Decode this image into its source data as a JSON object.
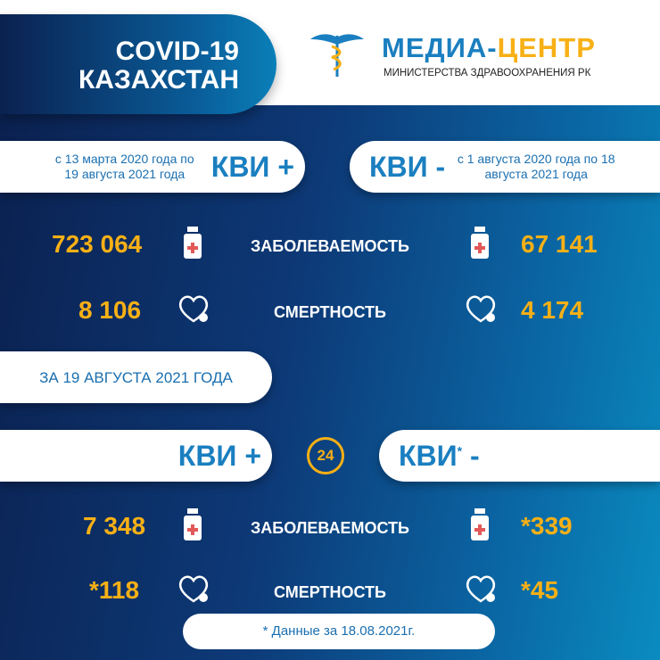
{
  "header": {
    "title_line1": "COVID-19",
    "title_line2": "КАЗАХСТАН",
    "brand_part1": "МЕДИА-",
    "brand_part2": "ЦЕНТР",
    "brand_sub": "МИНИСТЕРСТВА ЗДРАВООХРАНЕНИЯ РК"
  },
  "total": {
    "plus": {
      "label": "КВИ +",
      "dates": "с 13 марта 2020 года по 19 августа 2021 года",
      "cases": "723 064",
      "deaths": "8 106"
    },
    "minus": {
      "label": "КВИ -",
      "dates": "с 1 августа 2020 года по 18 августа 2021 года",
      "cases": "67 141",
      "deaths": "4 174"
    }
  },
  "labels": {
    "cases": "ЗАБОЛЕВАЕМОСТЬ",
    "deaths": "СМЕРТНОСТЬ"
  },
  "daily": {
    "date_label": "ЗА 19 АВГУСТА 2021 ГОДА",
    "badge": "24",
    "plus": {
      "label": "КВИ +",
      "cases": "7 348",
      "deaths": "*118"
    },
    "minus": {
      "label": "КВИ",
      "asterisk": "*",
      "suffix": "-",
      "cases": "*339",
      "deaths": "*45"
    }
  },
  "footnote": "* Данные за 18.08.2021г.",
  "colors": {
    "accent": "#f7b016",
    "brand": "#1a7fc0",
    "dark": "#0b2150"
  }
}
